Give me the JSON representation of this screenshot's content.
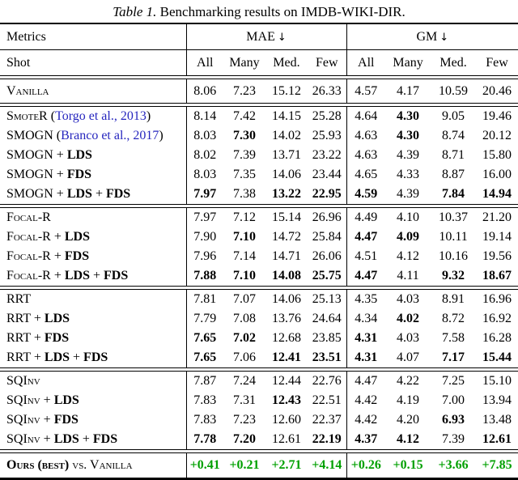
{
  "caption": {
    "number": "Table 1.",
    "text": " Benchmarking results on IMDB-WIKI-DIR."
  },
  "colors": {
    "citation_blue": "#2626BE",
    "highlight_green": "#00A000",
    "rule_black": "#000000"
  },
  "header": {
    "metrics_label": "Metrics",
    "mae_label": "MAE",
    "gm_label": "GM",
    "down_arrow": "↓",
    "shot_label": "Shot",
    "shot_columns": [
      "All",
      "Many",
      "Med.",
      "Few",
      "All",
      "Many",
      "Med.",
      "Few"
    ]
  },
  "body": {
    "groups": [
      {
        "rows": [
          {
            "label": [
              {
                "t": "Vanilla",
                "sc": 1
              }
            ],
            "values": [
              "8.06",
              "7.23",
              "15.12",
              "26.33",
              "4.57",
              "4.17",
              "10.59",
              "20.46"
            ],
            "bold": [
              0,
              0,
              0,
              0,
              0,
              0,
              0,
              0
            ]
          }
        ]
      },
      {
        "rows": [
          {
            "label": [
              {
                "t": "SmoteR",
                "sc": 1
              },
              {
                "t": " ("
              },
              {
                "t": "Torgo et al., 2013",
                "link": 1
              },
              {
                "t": ")"
              }
            ],
            "values": [
              "8.14",
              "7.42",
              "14.15",
              "25.28",
              "4.64",
              "4.30",
              "9.05",
              "19.46"
            ],
            "bold": [
              0,
              0,
              0,
              0,
              0,
              1,
              0,
              0
            ]
          },
          {
            "label": [
              {
                "t": "SMOGN"
              },
              {
                "t": " ("
              },
              {
                "t": "Branco et al., 2017",
                "link": 1
              },
              {
                "t": ")"
              }
            ],
            "values": [
              "8.03",
              "7.30",
              "14.02",
              "25.93",
              "4.63",
              "4.30",
              "8.74",
              "20.12"
            ],
            "bold": [
              0,
              1,
              0,
              0,
              0,
              1,
              0,
              0
            ]
          },
          {
            "label": [
              {
                "t": "SMOGN + "
              },
              {
                "t": "LDS",
                "b": 1
              }
            ],
            "values": [
              "8.02",
              "7.39",
              "13.71",
              "23.22",
              "4.63",
              "4.39",
              "8.71",
              "15.80"
            ],
            "bold": [
              0,
              0,
              0,
              0,
              0,
              0,
              0,
              0
            ]
          },
          {
            "label": [
              {
                "t": "SMOGN + "
              },
              {
                "t": "FDS",
                "b": 1
              }
            ],
            "values": [
              "8.03",
              "7.35",
              "14.06",
              "23.44",
              "4.65",
              "4.33",
              "8.87",
              "16.00"
            ],
            "bold": [
              0,
              0,
              0,
              0,
              0,
              0,
              0,
              0
            ]
          },
          {
            "label": [
              {
                "t": "SMOGN + "
              },
              {
                "t": "LDS",
                "b": 1
              },
              {
                "t": " + "
              },
              {
                "t": "FDS",
                "b": 1
              }
            ],
            "values": [
              "7.97",
              "7.38",
              "13.22",
              "22.95",
              "4.59",
              "4.39",
              "7.84",
              "14.94"
            ],
            "bold": [
              1,
              0,
              1,
              1,
              1,
              0,
              1,
              1
            ]
          }
        ]
      },
      {
        "rows": [
          {
            "label": [
              {
                "t": "Focal-R",
                "sc": 1
              }
            ],
            "values": [
              "7.97",
              "7.12",
              "15.14",
              "26.96",
              "4.49",
              "4.10",
              "10.37",
              "21.20"
            ],
            "bold": [
              0,
              0,
              0,
              0,
              0,
              0,
              0,
              0
            ]
          },
          {
            "label": [
              {
                "t": "Focal-R",
                "sc": 1
              },
              {
                "t": " + "
              },
              {
                "t": "LDS",
                "b": 1
              }
            ],
            "values": [
              "7.90",
              "7.10",
              "14.72",
              "25.84",
              "4.47",
              "4.09",
              "10.11",
              "19.14"
            ],
            "bold": [
              0,
              1,
              0,
              0,
              1,
              1,
              0,
              0
            ]
          },
          {
            "label": [
              {
                "t": "Focal-R",
                "sc": 1
              },
              {
                "t": " + "
              },
              {
                "t": "FDS",
                "b": 1
              }
            ],
            "values": [
              "7.96",
              "7.14",
              "14.71",
              "26.06",
              "4.51",
              "4.12",
              "10.16",
              "19.56"
            ],
            "bold": [
              0,
              0,
              0,
              0,
              0,
              0,
              0,
              0
            ]
          },
          {
            "label": [
              {
                "t": "Focal-R",
                "sc": 1
              },
              {
                "t": " + "
              },
              {
                "t": "LDS",
                "b": 1
              },
              {
                "t": " + "
              },
              {
                "t": "FDS",
                "b": 1
              }
            ],
            "values": [
              "7.88",
              "7.10",
              "14.08",
              "25.75",
              "4.47",
              "4.11",
              "9.32",
              "18.67"
            ],
            "bold": [
              1,
              1,
              1,
              1,
              1,
              0,
              1,
              1
            ]
          }
        ]
      },
      {
        "rows": [
          {
            "label": [
              {
                "t": "RRT"
              }
            ],
            "values": [
              "7.81",
              "7.07",
              "14.06",
              "25.13",
              "4.35",
              "4.03",
              "8.91",
              "16.96"
            ],
            "bold": [
              0,
              0,
              0,
              0,
              0,
              0,
              0,
              0
            ]
          },
          {
            "label": [
              {
                "t": "RRT + "
              },
              {
                "t": "LDS",
                "b": 1
              }
            ],
            "values": [
              "7.79",
              "7.08",
              "13.76",
              "24.64",
              "4.34",
              "4.02",
              "8.72",
              "16.92"
            ],
            "bold": [
              0,
              0,
              0,
              0,
              0,
              1,
              0,
              0
            ]
          },
          {
            "label": [
              {
                "t": "RRT + "
              },
              {
                "t": "FDS",
                "b": 1
              }
            ],
            "values": [
              "7.65",
              "7.02",
              "12.68",
              "23.85",
              "4.31",
              "4.03",
              "7.58",
              "16.28"
            ],
            "bold": [
              1,
              1,
              0,
              0,
              1,
              0,
              0,
              0
            ]
          },
          {
            "label": [
              {
                "t": "RRT + "
              },
              {
                "t": "LDS",
                "b": 1
              },
              {
                "t": " + "
              },
              {
                "t": "FDS",
                "b": 1
              }
            ],
            "values": [
              "7.65",
              "7.06",
              "12.41",
              "23.51",
              "4.31",
              "4.07",
              "7.17",
              "15.44"
            ],
            "bold": [
              1,
              0,
              1,
              1,
              1,
              0,
              1,
              1
            ]
          }
        ]
      },
      {
        "rows": [
          {
            "label": [
              {
                "t": "SQInv",
                "sc": 1
              }
            ],
            "values": [
              "7.87",
              "7.24",
              "12.44",
              "22.76",
              "4.47",
              "4.22",
              "7.25",
              "15.10"
            ],
            "bold": [
              0,
              0,
              0,
              0,
              0,
              0,
              0,
              0
            ]
          },
          {
            "label": [
              {
                "t": "SQInv",
                "sc": 1
              },
              {
                "t": " + "
              },
              {
                "t": "LDS",
                "b": 1
              }
            ],
            "values": [
              "7.83",
              "7.31",
              "12.43",
              "22.51",
              "4.42",
              "4.19",
              "7.00",
              "13.94"
            ],
            "bold": [
              0,
              0,
              1,
              0,
              0,
              0,
              0,
              0
            ]
          },
          {
            "label": [
              {
                "t": "SQInv",
                "sc": 1
              },
              {
                "t": " + "
              },
              {
                "t": "FDS",
                "b": 1
              }
            ],
            "values": [
              "7.83",
              "7.23",
              "12.60",
              "22.37",
              "4.42",
              "4.20",
              "6.93",
              "13.48"
            ],
            "bold": [
              0,
              0,
              0,
              0,
              0,
              0,
              1,
              0
            ]
          },
          {
            "label": [
              {
                "t": "SQInv",
                "sc": 1
              },
              {
                "t": " + "
              },
              {
                "t": "LDS",
                "b": 1
              },
              {
                "t": " + "
              },
              {
                "t": "FDS",
                "b": 1
              }
            ],
            "values": [
              "7.78",
              "7.20",
              "12.61",
              "22.19",
              "4.37",
              "4.12",
              "7.39",
              "12.61"
            ],
            "bold": [
              1,
              1,
              0,
              1,
              1,
              1,
              0,
              1
            ]
          }
        ]
      }
    ],
    "footer": {
      "label": [
        {
          "t": "Ours (best)",
          "sc": 1,
          "b": 1
        },
        {
          "t": " vs. ",
          "sc": 1
        },
        {
          "t": "Vanilla",
          "sc": 1
        }
      ],
      "values": [
        "+0.41",
        "+0.21",
        "+2.71",
        "+4.14",
        "+0.26",
        "+0.15",
        "+3.66",
        "+7.85"
      ],
      "green": 1,
      "bold": [
        1,
        1,
        1,
        1,
        1,
        1,
        1,
        1
      ]
    }
  }
}
